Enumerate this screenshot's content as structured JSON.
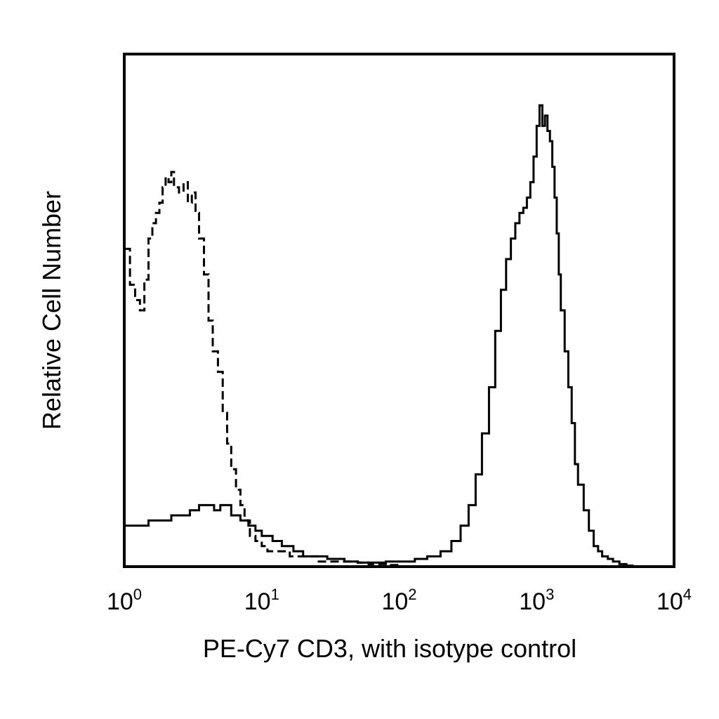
{
  "chart_data": {
    "type": "line",
    "title": "",
    "xlabel": "PE-Cy7 CD3, with isotype control",
    "ylabel": "Relative Cell Number",
    "x_scale": "log",
    "xlim": [
      1,
      10000
    ],
    "ylim": [
      0,
      100
    ],
    "grid": false,
    "x_ticks": [
      {
        "value": 1,
        "base": "10",
        "exp": "0"
      },
      {
        "value": 10,
        "base": "10",
        "exp": "1"
      },
      {
        "value": 100,
        "base": "10",
        "exp": "2"
      },
      {
        "value": 1000,
        "base": "10",
        "exp": "3"
      },
      {
        "value": 10000,
        "base": "10",
        "exp": "4"
      }
    ],
    "series": [
      {
        "style": "dashed",
        "color": "#000000",
        "x": [
          1,
          1.1,
          1.2,
          1.3,
          1.4,
          1.5,
          1.6,
          1.7,
          1.8,
          1.9,
          2,
          2.1,
          2.2,
          2.3,
          2.5,
          2.7,
          2.9,
          3.1,
          3.3,
          3.5,
          3.8,
          4.1,
          4.4,
          4.8,
          5.2,
          5.6,
          6,
          6.5,
          7,
          7.5,
          8.2,
          9,
          10,
          11,
          12,
          14,
          16,
          18,
          20,
          23,
          26,
          30,
          35,
          40,
          50,
          60,
          80,
          100
        ],
        "y": [
          62,
          55,
          52,
          50,
          56,
          64,
          67,
          69,
          71,
          74,
          76,
          75,
          77,
          74,
          73,
          75,
          71,
          73,
          69,
          64,
          57,
          48,
          42,
          38,
          30,
          24,
          19,
          15,
          12,
          9,
          6,
          5,
          4,
          3,
          3,
          3,
          2,
          2,
          2,
          2,
          1,
          1,
          1,
          1,
          0.8,
          0.5,
          0.3,
          0.2
        ]
      },
      {
        "style": "solid",
        "color": "#000000",
        "x": [
          1,
          1.2,
          1.5,
          1.8,
          2.2,
          2.6,
          3,
          3.5,
          4,
          4.5,
          5,
          6,
          7,
          8,
          9,
          10,
          12,
          14,
          17,
          20,
          25,
          30,
          40,
          50,
          60,
          80,
          100,
          130,
          160,
          200,
          240,
          280,
          320,
          360,
          400,
          450,
          500,
          550,
          600,
          650,
          700,
          750,
          800,
          850,
          900,
          950,
          1000,
          1050,
          1100,
          1150,
          1200,
          1250,
          1300,
          1350,
          1400,
          1450,
          1500,
          1600,
          1700,
          1800,
          1900,
          2000,
          2200,
          2400,
          2600,
          2800,
          3000,
          3300,
          3600,
          4000,
          4500,
          5000
        ],
        "y": [
          8,
          8,
          9,
          9,
          10,
          10,
          11,
          12,
          12,
          11,
          12,
          10,
          9,
          8,
          7,
          6,
          5,
          4,
          3,
          2,
          2,
          1.5,
          1,
          0.8,
          0.8,
          1,
          1,
          1.5,
          2,
          3,
          5,
          8,
          12,
          18,
          26,
          35,
          46,
          54,
          60,
          64,
          67,
          69,
          70,
          72,
          75,
          80,
          86,
          90,
          86,
          88,
          85,
          83,
          78,
          72,
          65,
          57,
          50,
          42,
          35,
          28,
          20,
          16,
          11,
          7,
          4,
          3,
          2,
          1.5,
          1,
          0.5,
          0.2,
          0
        ]
      }
    ]
  }
}
